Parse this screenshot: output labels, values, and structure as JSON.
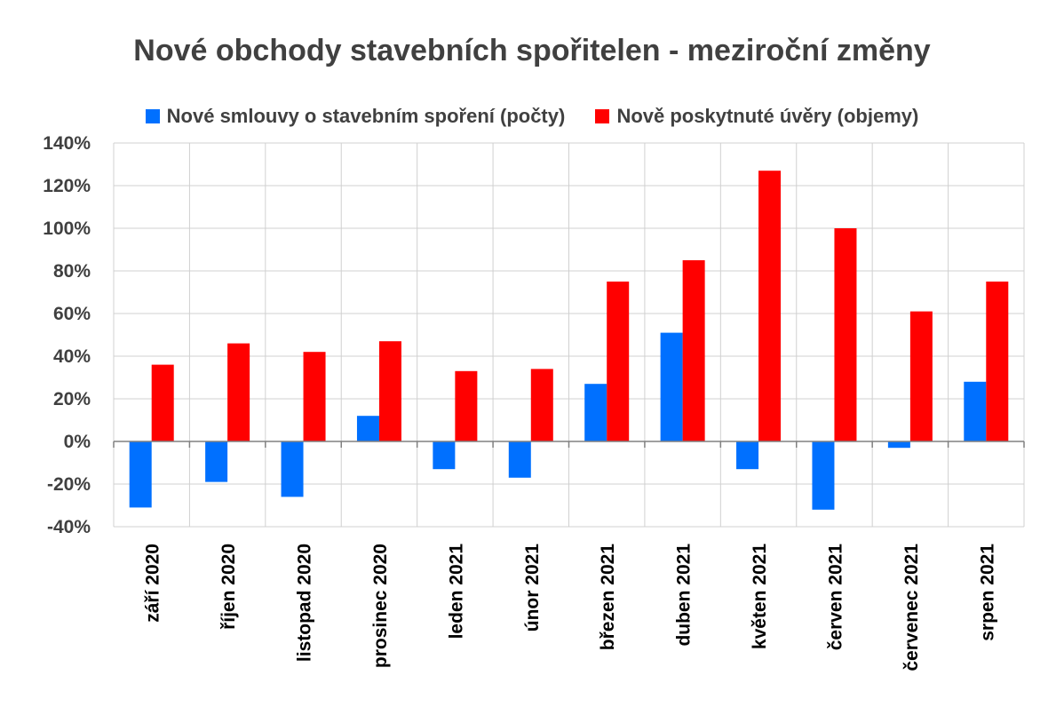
{
  "chart_data": {
    "type": "bar",
    "title": "Nové obchody stavebních spořitelen - meziroční změny",
    "categories": [
      "září 2020",
      "říjen 2020",
      "listopad 2020",
      "prosinec 2020",
      "leden 2021",
      "únor 2021",
      "březen 2021",
      "duben 2021",
      "květen 2021",
      "červen 2021",
      "červenec 2021",
      "srpen 2021"
    ],
    "series": [
      {
        "name": "Nové smlouvy o stavebním spoření (počty)",
        "color": "#0070FF",
        "values": [
          -31,
          -19,
          -26,
          12,
          -13,
          -17,
          27,
          51,
          -13,
          -32,
          -3,
          28
        ]
      },
      {
        "name": "Nově poskytnuté úvěry (objemy)",
        "color": "#FF0000",
        "values": [
          36,
          46,
          42,
          47,
          33,
          34,
          75,
          85,
          127,
          100,
          61,
          75
        ]
      }
    ],
    "ylim": [
      -40,
      140
    ],
    "yticks": [
      -40,
      -20,
      0,
      20,
      40,
      60,
      80,
      100,
      120,
      140
    ],
    "ytick_labels": [
      "-40%",
      "-20%",
      "0%",
      "20%",
      "40%",
      "60%",
      "80%",
      "100%",
      "120%",
      "140%"
    ],
    "grid": true,
    "legend_position": "top"
  }
}
